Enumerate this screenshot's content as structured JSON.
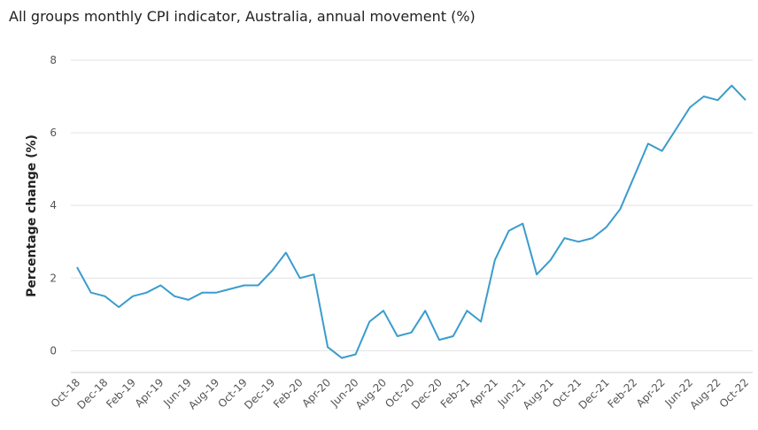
{
  "chart_data": {
    "type": "line",
    "title": "All groups monthly CPI indicator, Australia, annual movement (%)",
    "y_label": "Percentage change (%)",
    "categories": [
      "Oct-18",
      null,
      "Dec-18",
      null,
      "Feb-19",
      null,
      "Apr-19",
      null,
      "Jun-19",
      null,
      "Aug-19",
      null,
      "Oct-19",
      null,
      "Dec-19",
      null,
      "Feb-20",
      null,
      "Apr-20",
      null,
      "Jun-20",
      null,
      "Aug-20",
      null,
      "Oct-20",
      null,
      "Dec-20",
      null,
      "Feb-21",
      null,
      "Apr-21",
      null,
      "Jun-21",
      null,
      "Aug-21",
      null,
      "Oct-21",
      null,
      "Dec-21",
      null,
      "Feb-22",
      null,
      "Apr-22",
      null,
      "Jun-22",
      null,
      "Aug-22",
      null,
      "Oct-22"
    ],
    "values": [
      2.3,
      1.6,
      1.5,
      1.2,
      1.5,
      1.6,
      1.8,
      1.5,
      1.4,
      1.6,
      1.6,
      1.7,
      1.8,
      1.8,
      2.2,
      2.7,
      2.0,
      2.1,
      0.1,
      -0.2,
      -0.1,
      0.8,
      1.1,
      0.4,
      0.5,
      1.1,
      0.3,
      0.4,
      1.1,
      0.8,
      2.5,
      3.3,
      3.5,
      2.1,
      2.5,
      3.1,
      3.0,
      3.1,
      3.4,
      3.9,
      4.8,
      5.7,
      5.5,
      6.1,
      6.7,
      7.0,
      6.9,
      7.3,
      6.9
    ],
    "color": "#3a9ccd",
    "ylim": [
      -0.6,
      8
    ],
    "yticks": [
      0,
      2,
      4,
      6,
      8
    ],
    "grid": true
  }
}
